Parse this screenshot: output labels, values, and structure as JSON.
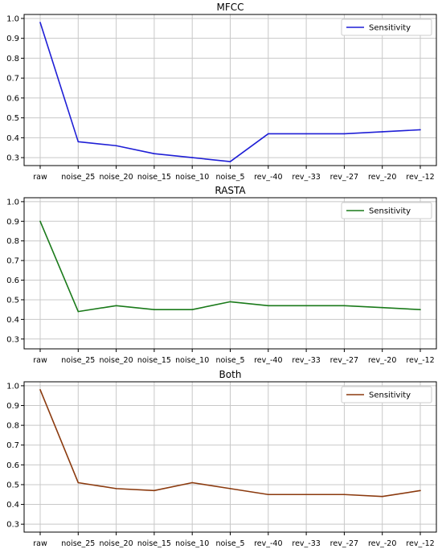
{
  "chart_data": [
    {
      "type": "line",
      "title": "MFCC",
      "categories": [
        "raw",
        "noise_25",
        "noise_20",
        "noise_15",
        "noise_10",
        "noise_5",
        "rev_-40",
        "rev_-33",
        "rev_-27",
        "rev_-20",
        "rev_-12"
      ],
      "yticks": [
        "0.3",
        "0.4",
        "0.5",
        "0.6",
        "0.7",
        "0.8",
        "0.9",
        "1.0"
      ],
      "ylim": [
        0.26,
        1.02
      ],
      "grid": true,
      "legend_position": "top-right",
      "series": [
        {
          "name": "Sensitivity",
          "color": "#1f1fd6",
          "values": [
            0.98,
            0.38,
            0.36,
            0.32,
            0.3,
            0.28,
            0.42,
            0.42,
            0.42,
            0.43,
            0.44
          ]
        }
      ]
    },
    {
      "type": "line",
      "title": "RASTA",
      "categories": [
        "raw",
        "noise_25",
        "noise_20",
        "noise_15",
        "noise_10",
        "noise_5",
        "rev_-40",
        "rev_-33",
        "rev_-27",
        "rev_-20",
        "rev_-12"
      ],
      "yticks": [
        "0.3",
        "0.4",
        "0.5",
        "0.6",
        "0.7",
        "0.8",
        "0.9",
        "1.0"
      ],
      "ylim": [
        0.25,
        1.02
      ],
      "grid": true,
      "legend_position": "top-right",
      "series": [
        {
          "name": "Sensitivity",
          "color": "#1a7a1a",
          "values": [
            0.9,
            0.44,
            0.47,
            0.45,
            0.45,
            0.49,
            0.47,
            0.47,
            0.47,
            0.46,
            0.45
          ]
        }
      ]
    },
    {
      "type": "line",
      "title": "Both",
      "categories": [
        "raw",
        "noise_25",
        "noise_20",
        "noise_15",
        "noise_10",
        "noise_5",
        "rev_-40",
        "rev_-33",
        "rev_-27",
        "rev_-20",
        "rev_-12"
      ],
      "yticks": [
        "0.3",
        "0.4",
        "0.5",
        "0.6",
        "0.7",
        "0.8",
        "0.9",
        "1.0"
      ],
      "ylim": [
        0.26,
        1.02
      ],
      "grid": true,
      "legend_position": "top-right",
      "series": [
        {
          "name": "Sensitivity",
          "color": "#8b3a0e",
          "values": [
            0.98,
            0.51,
            0.48,
            0.47,
            0.51,
            0.48,
            0.45,
            0.45,
            0.45,
            0.44,
            0.47
          ]
        }
      ]
    }
  ]
}
